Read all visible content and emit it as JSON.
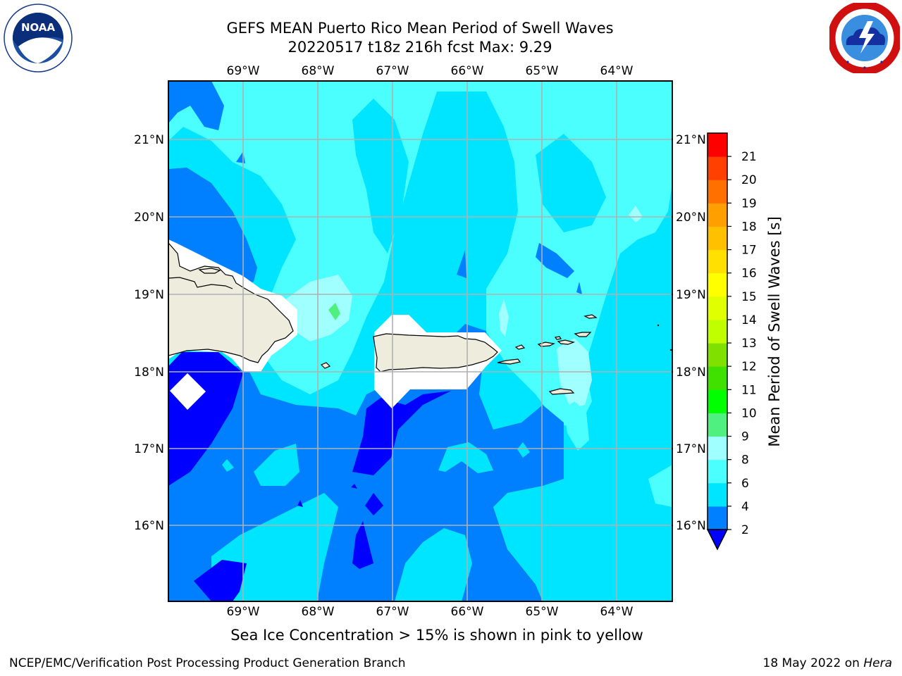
{
  "header": {
    "title_line1": "GEFS MEAN Puerto Rico Mean Period of Swell Waves",
    "title_line2": "20220517 t18z 216h fcst   Max: 9.29"
  },
  "logos": {
    "noaa": {
      "text": "NOAA",
      "ring_text": "NATIONAL OCEANIC AND ATMOSPHERIC ADMINISTRATION · U.S. DEPARTMENT OF COMMERCE"
    },
    "nws": {
      "ring_text": "NATIONAL WEATHER SERVICE"
    }
  },
  "map": {
    "lon_labels": [
      "69°W",
      "68°W",
      "67°W",
      "66°W",
      "65°W",
      "64°W"
    ],
    "lat_labels": [
      "21°N",
      "20°N",
      "19°N",
      "18°N",
      "17°N",
      "16°N"
    ],
    "extent": {
      "lon_min": -70.0,
      "lon_max": -63.25,
      "lat_min": 15.0,
      "lat_max": 21.75
    },
    "land_color": "#eeecdc",
    "gridline_color": "#b0b0b0"
  },
  "colorbar": {
    "title": "Mean Period of Swell Waves [s]",
    "levels": [
      "2",
      "4",
      "6",
      "8",
      "9",
      "10",
      "11",
      "12",
      "13",
      "14",
      "15",
      "16",
      "17",
      "18",
      "19",
      "20",
      "21"
    ],
    "colors": [
      "#0080ff",
      "#00e5ff",
      "#4cffff",
      "#a0ffff",
      "#50f080",
      "#00ff00",
      "#40e000",
      "#80e000",
      "#c0ff00",
      "#e0ff00",
      "#ffff00",
      "#ffe000",
      "#ffc000",
      "#ffa000",
      "#ff7000",
      "#ff4000",
      "#ff0000"
    ],
    "under_color": "#0000ff"
  },
  "footer": {
    "note": "Sea Ice Concentration > 15% is shown in pink to yellow",
    "left": "NCEP/EMC/Verification Post Processing Product Generation Branch",
    "right_date": "18 May 2022 on",
    "right_host": "Hera"
  }
}
